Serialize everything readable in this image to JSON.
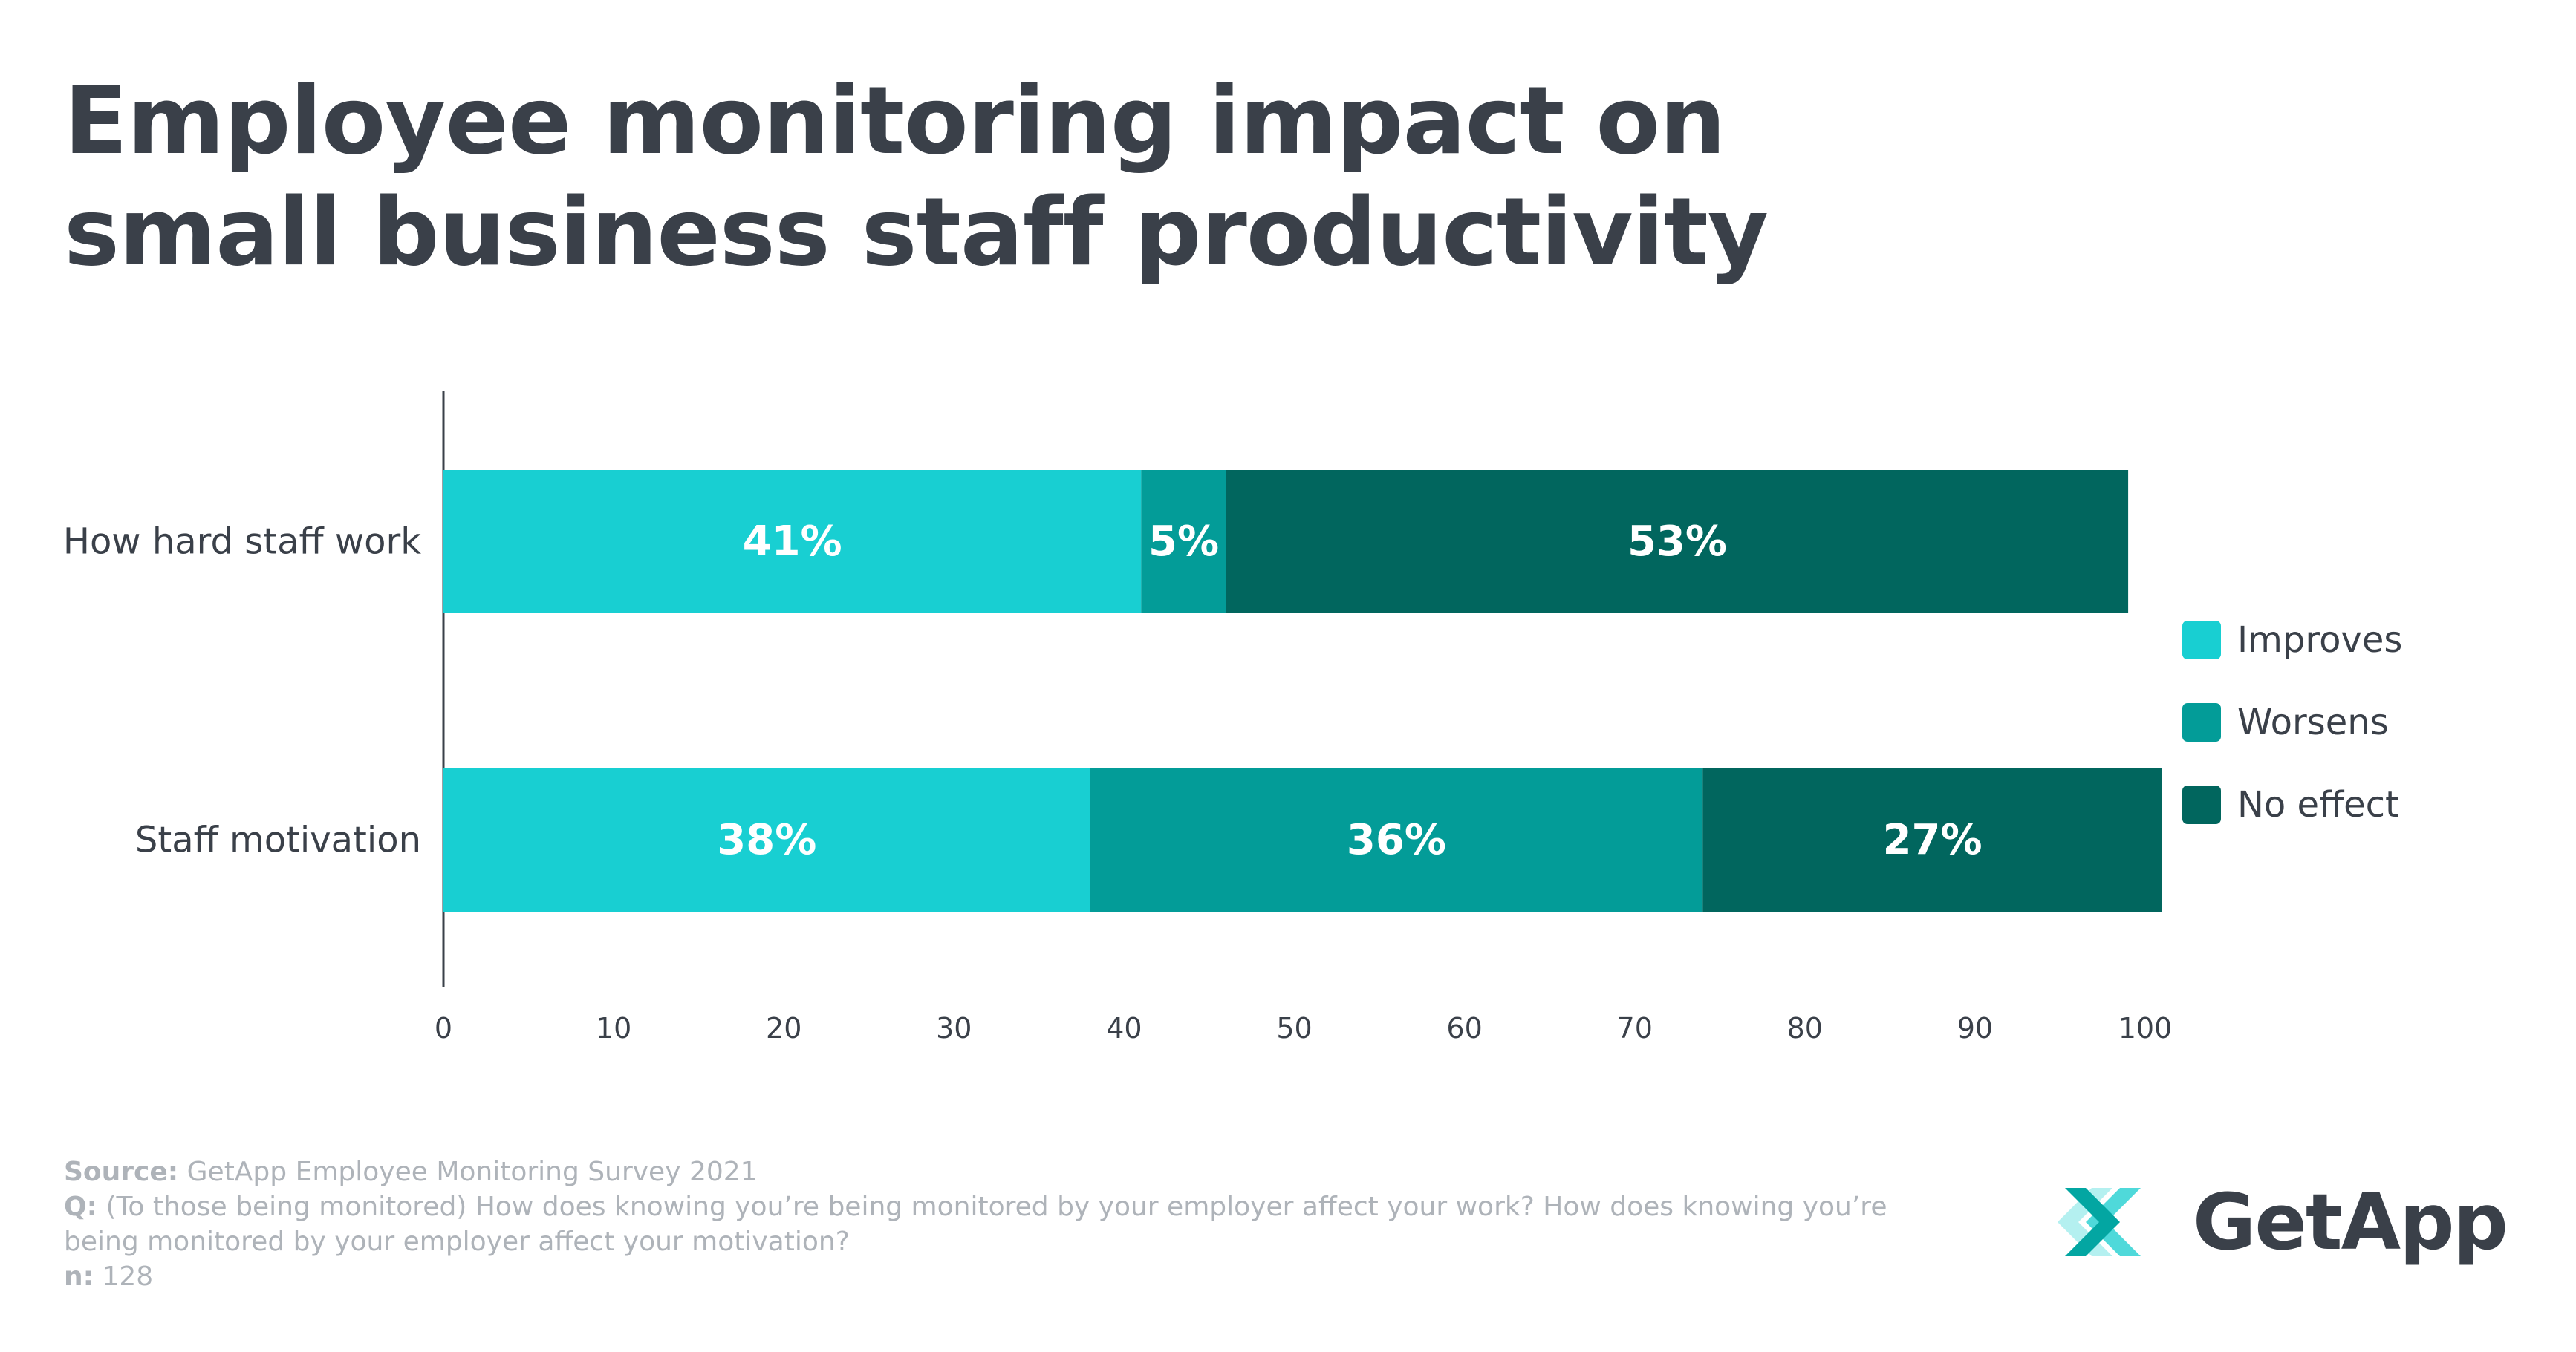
{
  "title": {
    "line1": "Employee monitoring impact on",
    "line2": "small business staff productivity"
  },
  "colors": {
    "improves": "#18cfd2",
    "worsens": "#039c98",
    "no_effect": "#01665e",
    "text": "#3a4049",
    "muted": "#aeb3b9"
  },
  "chart_data": {
    "type": "bar",
    "orientation": "horizontal",
    "stacked": true,
    "title": "Employee monitoring impact on small business staff productivity",
    "categories": [
      "How hard staff work",
      "Staff motivation"
    ],
    "series": [
      {
        "name": "Improves",
        "values": [
          41,
          38
        ],
        "labels": [
          "41%",
          "38%"
        ]
      },
      {
        "name": "Worsens",
        "values": [
          5,
          36
        ],
        "labels": [
          "5%",
          "36%"
        ]
      },
      {
        "name": "No effect",
        "values": [
          53,
          27
        ],
        "labels": [
          "53%",
          "27%"
        ]
      }
    ],
    "xlim": [
      0,
      100
    ],
    "xticks": [
      "0",
      "10",
      "20",
      "30",
      "40",
      "50",
      "60",
      "70",
      "80",
      "90",
      "100"
    ],
    "grid": false,
    "legend_position": "right"
  },
  "legend": [
    {
      "label": "Improves"
    },
    {
      "label": "Worsens"
    },
    {
      "label": "No effect"
    }
  ],
  "footer": {
    "source_label": "Source:",
    "source_text": " GetApp Employee Monitoring Survey 2021",
    "q_label": "Q:",
    "q_text": " (To those being monitored) How does knowing you’re being monitored by your employer affect your work? How does knowing you’re being monitored by your employer affect your motivation?",
    "n_label": "n:",
    "n_text": " 128"
  },
  "logo": {
    "text": "GetApp",
    "icon": "getapp-chevrons-icon"
  }
}
